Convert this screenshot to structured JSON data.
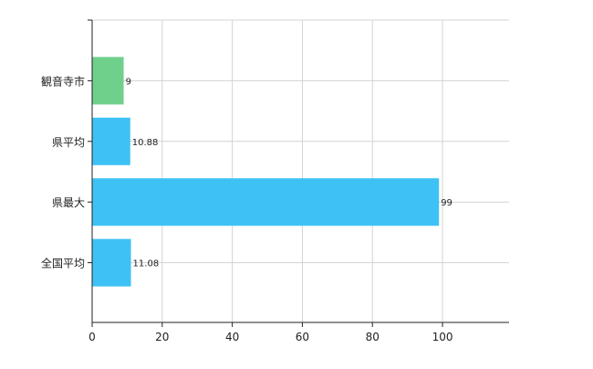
{
  "chart_data": {
    "type": "bar",
    "orientation": "horizontal",
    "categories": [
      "観音寺市",
      "県平均",
      "県最大",
      "全国平均"
    ],
    "values": [
      9,
      10.88,
      99,
      11.08
    ],
    "value_labels": [
      "9",
      "10.88",
      "99",
      "11.08"
    ],
    "bar_colors": [
      "#6fd08c",
      "#3ec2f5",
      "#3ec2f5",
      "#3ec2f5"
    ],
    "x_ticks": [
      0,
      20,
      40,
      60,
      80,
      100
    ],
    "x_tick_labels": [
      "0",
      "20",
      "40",
      "60",
      "80",
      "100"
    ],
    "xlim": [
      0,
      119
    ],
    "grid": true,
    "grid_color": "#d3d3d3",
    "axis_color": "#222222",
    "title": "",
    "xlabel": "",
    "ylabel": ""
  }
}
